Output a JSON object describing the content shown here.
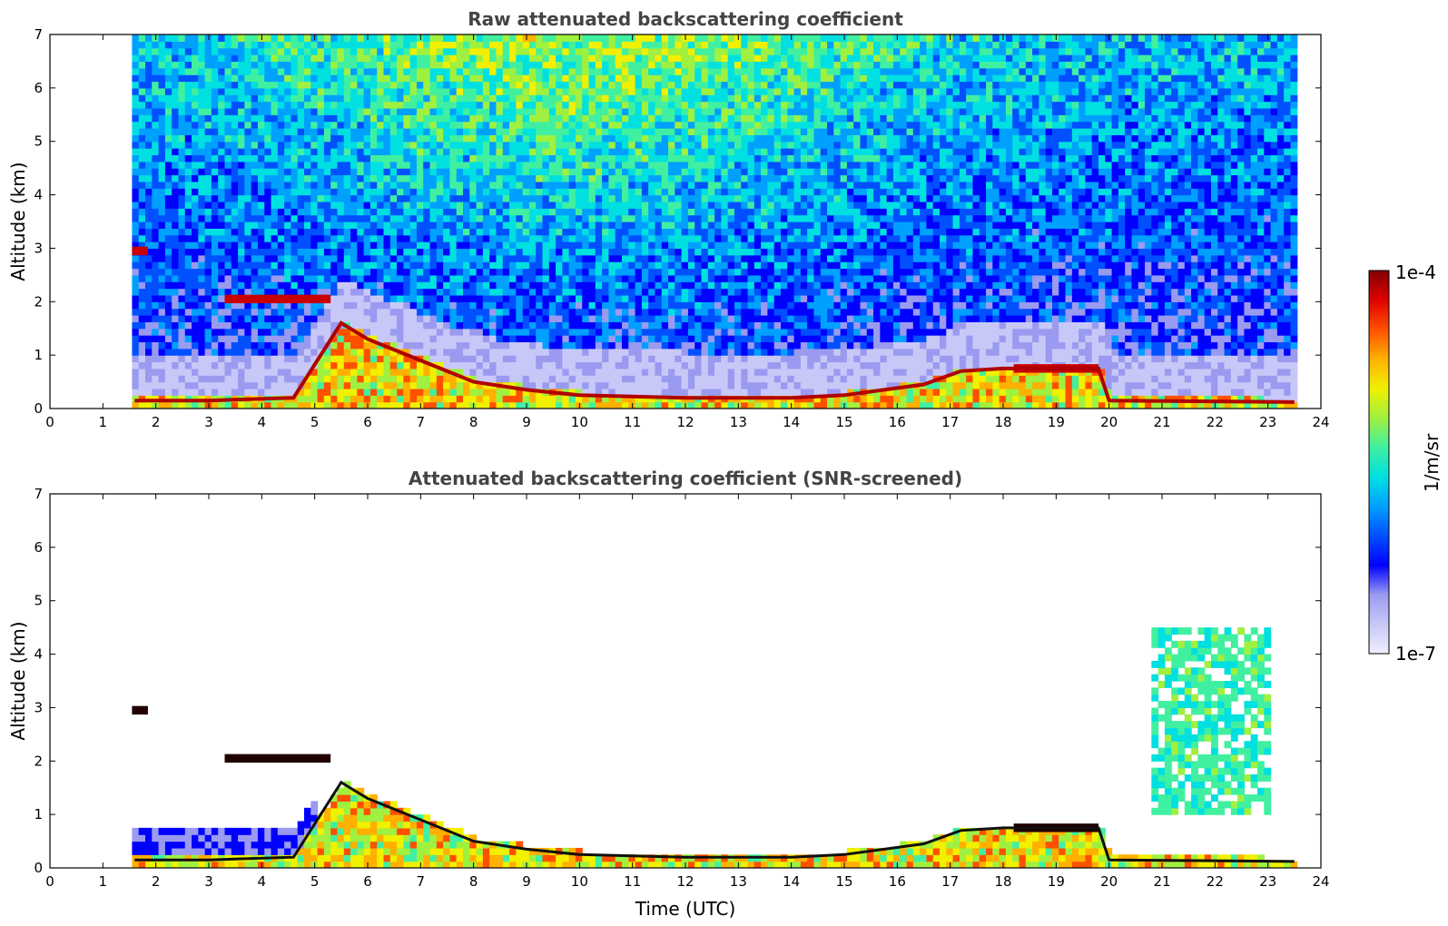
{
  "chart_data": [
    {
      "type": "heatmap",
      "id": "top",
      "title": "Raw attenuated backscattering coefficient",
      "xlabel": "",
      "ylabel": "Altitude (km)",
      "xlim": [
        0,
        24
      ],
      "ylim": [
        0,
        7
      ],
      "xticks": [
        "0",
        "1",
        "2",
        "3",
        "4",
        "5",
        "6",
        "7",
        "8",
        "9",
        "10",
        "11",
        "12",
        "13",
        "14",
        "15",
        "16",
        "17",
        "18",
        "19",
        "20",
        "21",
        "22",
        "23",
        "24"
      ],
      "yticks": [
        "0",
        "1",
        "2",
        "3",
        "4",
        "5",
        "6",
        "7"
      ],
      "data_start_hour": 1.55,
      "data_end_hour": 23.55,
      "boundary_layer_top_km": [
        {
          "t": 1.6,
          "h": 0.15
        },
        {
          "t": 3.0,
          "h": 0.15
        },
        {
          "t": 4.6,
          "h": 0.2
        },
        {
          "t": 5.5,
          "h": 1.6
        },
        {
          "t": 6.0,
          "h": 1.3
        },
        {
          "t": 7.0,
          "h": 0.9
        },
        {
          "t": 8.0,
          "h": 0.5
        },
        {
          "t": 9.0,
          "h": 0.35
        },
        {
          "t": 10.0,
          "h": 0.25
        },
        {
          "t": 12.0,
          "h": 0.2
        },
        {
          "t": 14.0,
          "h": 0.2
        },
        {
          "t": 15.0,
          "h": 0.25
        },
        {
          "t": 16.5,
          "h": 0.45
        },
        {
          "t": 17.2,
          "h": 0.7
        },
        {
          "t": 18.0,
          "h": 0.75
        },
        {
          "t": 19.8,
          "h": 0.75
        },
        {
          "t": 20.0,
          "h": 0.15
        },
        {
          "t": 23.5,
          "h": 0.12
        }
      ],
      "cloud_layers_km": [
        {
          "t0": 1.55,
          "t1": 1.85,
          "h": 2.95
        },
        {
          "t0": 3.3,
          "t1": 5.3,
          "h": 2.05
        },
        {
          "t0": 18.2,
          "t1": 19.8,
          "h": 0.75
        }
      ]
    },
    {
      "type": "heatmap",
      "id": "bottom",
      "title": "Attenuated backscattering coefficient (SNR-screened)",
      "xlabel": "Time (UTC)",
      "ylabel": "Altitude (km)",
      "xlim": [
        0,
        24
      ],
      "ylim": [
        0,
        7
      ],
      "xticks": [
        "0",
        "1",
        "2",
        "3",
        "4",
        "5",
        "6",
        "7",
        "8",
        "9",
        "10",
        "11",
        "12",
        "13",
        "14",
        "15",
        "16",
        "17",
        "18",
        "19",
        "20",
        "21",
        "22",
        "23",
        "24"
      ],
      "yticks": [
        "0",
        "1",
        "2",
        "3",
        "4",
        "5",
        "6",
        "7"
      ],
      "screened_upper_region": {
        "t0": 20.7,
        "t1": 23.0,
        "h0": 0.9,
        "h1": 4.4
      }
    }
  ],
  "colorbar": {
    "label": "1/m/sr",
    "max_label": "1e-4",
    "min_label": "1e-7",
    "colors": [
      "#eeeeff",
      "#c8c8f8",
      "#9a9af0",
      "#0000ff",
      "#0050ff",
      "#00a0ff",
      "#00e0e0",
      "#40f0a0",
      "#a0f040",
      "#f0f000",
      "#ffb000",
      "#ff5000",
      "#e00000",
      "#800000"
    ]
  }
}
